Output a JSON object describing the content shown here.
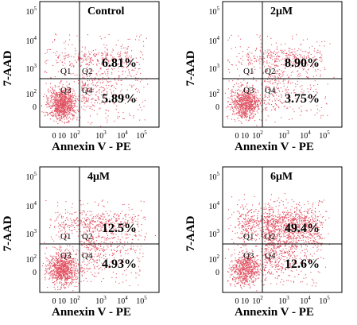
{
  "chart_data": [
    {
      "type": "scatter",
      "title": "Control",
      "xlabel": "Annexin V - PE",
      "ylabel": "7-AAD",
      "x_ticks": [
        "0",
        "10",
        "10",
        "10",
        "10",
        "10"
      ],
      "x_tick_exponents": [
        "",
        "",
        "2",
        "3",
        "4",
        "5"
      ],
      "y_ticks": [
        "0",
        "10",
        "10",
        "10",
        "10"
      ],
      "y_tick_exponents": [
        "",
        "2",
        "3",
        "4",
        "5"
      ],
      "quadrant_labels": [
        "Q1",
        "Q2",
        "Q3",
        "Q4"
      ],
      "q2_percent": "6.81%",
      "q4_percent": "5.89%",
      "point_color": "#e05060"
    },
    {
      "type": "scatter",
      "title": "2μM",
      "xlabel": "Annexin V - PE",
      "ylabel": "7-AAD",
      "x_ticks": [
        "0",
        "10",
        "10",
        "10",
        "10",
        "10"
      ],
      "x_tick_exponents": [
        "",
        "",
        "2",
        "3",
        "4",
        "5"
      ],
      "y_ticks": [
        "0",
        "10",
        "10",
        "10",
        "10"
      ],
      "y_tick_exponents": [
        "",
        "2",
        "3",
        "4",
        "5"
      ],
      "quadrant_labels": [
        "Q1",
        "Q2",
        "Q3",
        "Q4"
      ],
      "q2_percent": "8.90%",
      "q4_percent": "3.75%",
      "point_color": "#e05060"
    },
    {
      "type": "scatter",
      "title": "4μM",
      "xlabel": "Annexin V - PE",
      "ylabel": "7-AAD",
      "x_ticks": [
        "0",
        "10",
        "10",
        "10",
        "10",
        "10"
      ],
      "x_tick_exponents": [
        "",
        "",
        "2",
        "3",
        "4",
        "5"
      ],
      "y_ticks": [
        "0",
        "10",
        "10",
        "10",
        "10"
      ],
      "y_tick_exponents": [
        "",
        "2",
        "3",
        "4",
        "5"
      ],
      "quadrant_labels": [
        "Q1",
        "Q2",
        "Q3",
        "Q4"
      ],
      "q2_percent": "12.5%",
      "q4_percent": "4.93%",
      "point_color": "#e05060"
    },
    {
      "type": "scatter",
      "title": "6μM",
      "xlabel": "Annexin V - PE",
      "ylabel": "7-AAD",
      "x_ticks": [
        "0",
        "10",
        "10",
        "10",
        "10",
        "10"
      ],
      "x_tick_exponents": [
        "",
        "",
        "2",
        "3",
        "4",
        "5"
      ],
      "y_ticks": [
        "0",
        "10",
        "10",
        "10",
        "10"
      ],
      "y_tick_exponents": [
        "",
        "2",
        "3",
        "4",
        "5"
      ],
      "quadrant_labels": [
        "Q1",
        "Q2",
        "Q3",
        "Q4"
      ],
      "q2_percent": "49.4%",
      "q4_percent": "12.6%",
      "point_color": "#e05060"
    }
  ]
}
